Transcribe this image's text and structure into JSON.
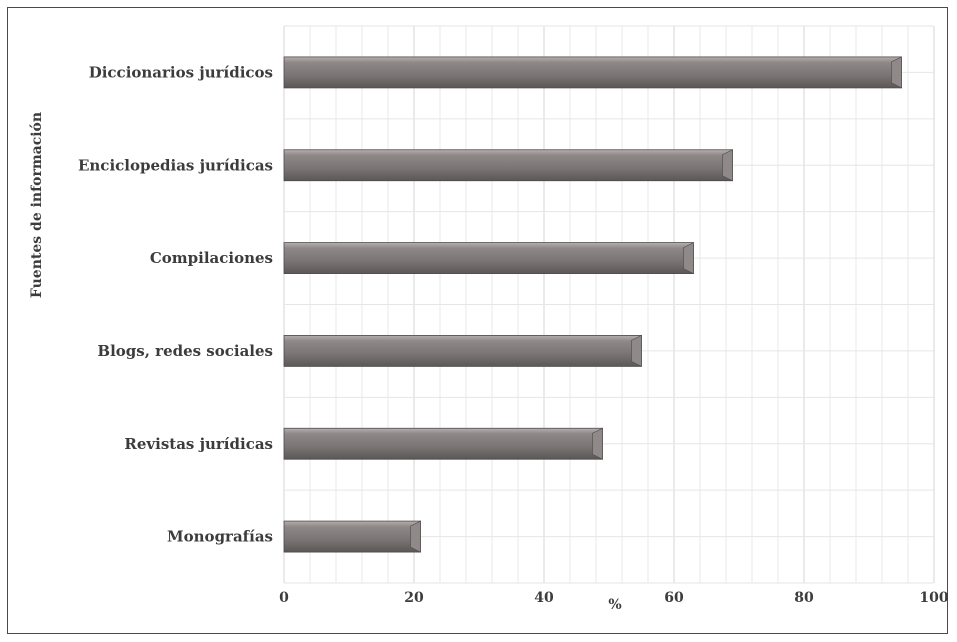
{
  "chart_data": {
    "type": "bar",
    "orientation": "horizontal",
    "categories": [
      "Diccionarios jurídicos",
      "Enciclopedias jurídicas",
      "Compilaciones",
      "Blogs, redes sociales",
      "Revistas jurídicas",
      "Monografías"
    ],
    "values": [
      95,
      69,
      63,
      55,
      49,
      21
    ],
    "xlabel": "%",
    "ylabel": "Fuentes de información",
    "xlim": [
      0,
      100
    ],
    "xticks": [
      0,
      20,
      40,
      60,
      80,
      100
    ],
    "xtick_labels": [
      "0",
      "20",
      "40",
      "60",
      "80",
      "100"
    ],
    "grid": true,
    "bar_color": "#7a7474"
  }
}
